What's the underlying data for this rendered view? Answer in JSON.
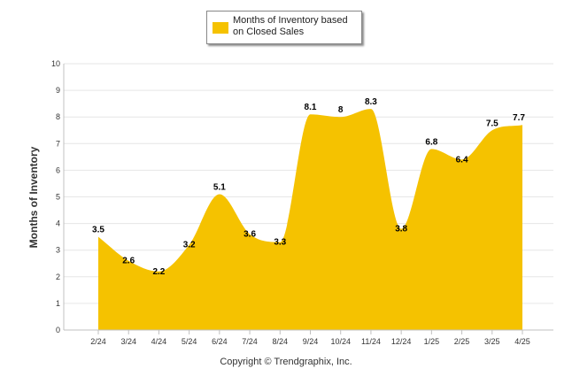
{
  "chart_data": {
    "type": "area",
    "categories": [
      "2/24",
      "3/24",
      "4/24",
      "5/24",
      "6/24",
      "7/24",
      "8/24",
      "9/24",
      "10/24",
      "11/24",
      "12/24",
      "1/25",
      "2/25",
      "3/25",
      "4/25"
    ],
    "series": [
      {
        "name": "Months of Inventory based on Closed Sales",
        "values": [
          3.5,
          2.6,
          2.2,
          3.2,
          5.1,
          3.6,
          3.3,
          8.1,
          8,
          8.3,
          3.8,
          6.8,
          6.4,
          7.5,
          7.7
        ],
        "color": "#F5C200"
      }
    ],
    "data_labels": [
      "3.5",
      "2.6",
      "2.2",
      "3.2",
      "5.1",
      "3.6",
      "3.3",
      "8.1",
      "8",
      "8.3",
      "3.8",
      "6.8",
      "6.4",
      "7.5",
      "7.7"
    ],
    "ylabel": "Months of Inventory",
    "xlabel": "",
    "ylim": [
      0,
      10
    ],
    "y_ticks": [
      "0",
      "1",
      "2",
      "3",
      "4",
      "5",
      "6",
      "7",
      "8",
      "9",
      "10"
    ],
    "grid": true,
    "legend_position": "top-center"
  },
  "legend": {
    "label_line1": "Months of Inventory based",
    "label_line2": "on Closed Sales"
  },
  "footer": {
    "copyright": "Copyright © Trendgraphix, Inc."
  },
  "colors": {
    "fill": "#F5C200",
    "grid": "#E6E6E6",
    "axis": "#C0C0C0"
  }
}
